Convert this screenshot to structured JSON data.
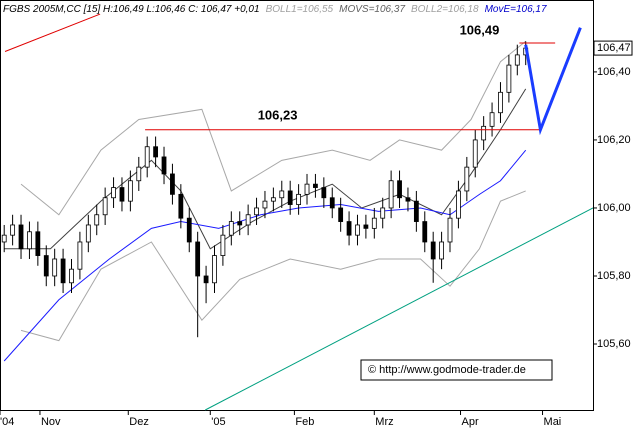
{
  "chart_data": {
    "type": "candlestick",
    "header": [
      {
        "text": "FGBS 2005M,CC [15] H:106,49 L:106,46 C: 106,47 +0,01",
        "color": "#000000"
      },
      {
        "text": "BOLL1=106,55",
        "color": "#a0a0a0"
      },
      {
        "text": "MOVS=106,37",
        "color": "#606060"
      },
      {
        "text": "BOLL2=106,18",
        "color": "#a0a0a0"
      },
      {
        "text": "MovE=106,17",
        "color": "#0000cc"
      }
    ],
    "xlim": [
      0,
      141
    ],
    "ylim": [
      105.406,
      106.582
    ],
    "yticks": [
      {
        "value": 105.6,
        "label": "105,60"
      },
      {
        "value": 105.8,
        "label": "105,80"
      },
      {
        "value": 106.0,
        "label": "106,00"
      },
      {
        "value": 106.2,
        "label": "106,20"
      },
      {
        "value": 106.4,
        "label": "106,40"
      }
    ],
    "xticks": [
      {
        "value": 0,
        "label": "'04"
      },
      {
        "value": 9.5,
        "label": "Nov"
      },
      {
        "value": 30.5,
        "label": "Dez"
      },
      {
        "value": 50,
        "label": "'05"
      },
      {
        "value": 70,
        "label": "Feb"
      },
      {
        "value": 89,
        "label": "Mrz"
      },
      {
        "value": 109.5,
        "label": "Apr"
      },
      {
        "value": 129,
        "label": "Mai"
      }
    ],
    "x": [
      1,
      3,
      5,
      7,
      9,
      11,
      13,
      15,
      17,
      19,
      21,
      23,
      25,
      27,
      29,
      31,
      33,
      35,
      37,
      39,
      41,
      43,
      45,
      47,
      49,
      51,
      53,
      55,
      57,
      59,
      61,
      63,
      65,
      67,
      69,
      71,
      73,
      75,
      77,
      79,
      81,
      83,
      85,
      87,
      89,
      91,
      93,
      95,
      97,
      99,
      101,
      103,
      105,
      107,
      109,
      111,
      113,
      115,
      117,
      119,
      121,
      123,
      125
    ],
    "open": [
      105.9,
      105.92,
      105.95,
      105.88,
      105.93,
      105.86,
      105.8,
      105.85,
      105.78,
      105.82,
      105.9,
      105.95,
      105.98,
      106.03,
      106.06,
      106.02,
      106.08,
      106.12,
      106.18,
      106.15,
      106.1,
      106.04,
      105.97,
      105.9,
      105.8,
      105.78,
      105.86,
      105.92,
      105.96,
      105.95,
      105.98,
      106.0,
      106.02,
      106.03,
      106.05,
      106.01,
      106.04,
      106.07,
      106.06,
      106.03,
      106.0,
      105.96,
      105.92,
      105.95,
      105.94,
      105.97,
      106.0,
      106.08,
      106.03,
      106.02,
      105.96,
      105.9,
      105.85,
      105.9,
      105.97,
      106.05,
      106.12,
      106.2,
      106.24,
      106.28,
      106.34,
      106.42,
      106.45
    ],
    "high": [
      105.95,
      105.98,
      105.98,
      105.96,
      105.96,
      105.89,
      105.88,
      105.88,
      105.85,
      105.93,
      105.98,
      106.01,
      106.06,
      106.09,
      106.09,
      106.11,
      106.15,
      106.21,
      106.21,
      106.18,
      106.13,
      106.07,
      106.0,
      105.93,
      105.83,
      105.89,
      105.95,
      105.99,
      105.99,
      106.01,
      106.03,
      106.05,
      106.06,
      106.08,
      106.08,
      106.07,
      106.1,
      106.1,
      106.09,
      106.06,
      106.03,
      105.99,
      105.98,
      105.98,
      106.0,
      106.03,
      106.11,
      106.11,
      106.06,
      106.05,
      105.99,
      105.93,
      105.93,
      106.0,
      106.08,
      106.15,
      106.23,
      106.27,
      106.31,
      106.37,
      106.45,
      106.48,
      106.49
    ],
    "low": [
      105.87,
      105.89,
      105.85,
      105.85,
      105.83,
      105.77,
      105.77,
      105.75,
      105.75,
      105.79,
      105.87,
      105.92,
      105.95,
      106.0,
      105.99,
      105.99,
      106.05,
      106.09,
      106.12,
      106.07,
      106.01,
      105.94,
      105.87,
      105.62,
      105.72,
      105.75,
      105.83,
      105.89,
      105.92,
      105.92,
      105.95,
      105.97,
      105.99,
      106.0,
      105.98,
      105.98,
      106.01,
      106.03,
      106.0,
      105.97,
      105.93,
      105.89,
      105.89,
      105.91,
      105.91,
      105.94,
      105.97,
      106.0,
      105.99,
      105.93,
      105.87,
      105.78,
      105.82,
      105.87,
      105.94,
      106.02,
      106.09,
      106.17,
      106.21,
      106.25,
      106.31,
      106.39,
      106.42
    ],
    "close": [
      105.92,
      105.95,
      105.88,
      105.93,
      105.86,
      105.8,
      105.85,
      105.78,
      105.82,
      105.9,
      105.95,
      105.98,
      106.03,
      106.06,
      106.02,
      106.08,
      106.12,
      106.18,
      106.15,
      106.1,
      106.04,
      105.97,
      105.9,
      105.8,
      105.78,
      105.86,
      105.92,
      105.96,
      105.95,
      105.98,
      106.0,
      106.02,
      106.03,
      106.05,
      106.01,
      106.04,
      106.07,
      106.06,
      106.03,
      106.0,
      105.96,
      105.92,
      105.95,
      105.94,
      105.97,
      106.0,
      106.08,
      106.03,
      106.02,
      105.96,
      105.9,
      105.85,
      105.9,
      105.97,
      106.05,
      106.12,
      106.2,
      106.24,
      106.28,
      106.34,
      106.42,
      106.45,
      106.47
    ],
    "overlays": [
      {
        "color": "#a8a8a8",
        "x": [
          5,
          14,
          24,
          33,
          48,
          55,
          67,
          79,
          88,
          95,
          105,
          112,
          119,
          125
        ],
        "values": [
          106.07,
          105.98,
          106.17,
          106.26,
          106.29,
          106.05,
          106.14,
          106.17,
          106.14,
          106.2,
          106.17,
          106.26,
          106.43,
          106.49
        ]
      },
      {
        "color": "#a8a8a8",
        "x": [
          5,
          14,
          24,
          36,
          48,
          57,
          69,
          81,
          90,
          100,
          107,
          114,
          119,
          125
        ],
        "values": [
          105.64,
          105.61,
          105.82,
          105.9,
          105.67,
          105.79,
          105.85,
          105.82,
          105.85,
          105.85,
          105.77,
          105.88,
          106.02,
          106.05
        ]
      },
      {
        "color": "#404040",
        "x": [
          1,
          12,
          24,
          36,
          43,
          50,
          60,
          69,
          79,
          86,
          95,
          105,
          112,
          119,
          125
        ],
        "values": [
          105.88,
          105.88,
          106.02,
          106.14,
          106.05,
          105.88,
          105.96,
          106.02,
          106.07,
          106.0,
          106.04,
          105.98,
          106.1,
          106.23,
          106.35
        ]
      },
      {
        "color": "#1a1aff",
        "x": [
          1,
          14,
          26,
          36,
          43,
          52,
          62,
          71,
          81,
          90,
          100,
          107,
          114,
          119,
          125
        ],
        "values": [
          105.55,
          105.73,
          105.85,
          105.94,
          105.96,
          105.94,
          105.98,
          106.0,
          106.01,
          105.99,
          106.0,
          105.98,
          106.04,
          106.08,
          106.17
        ]
      }
    ],
    "lines": [
      {
        "color": "#e00000",
        "width": 1,
        "x": [
          34.5,
          128.5
        ],
        "values": [
          106.23,
          106.23
        ]
      },
      {
        "color": "#e00000",
        "width": 1,
        "x": [
          123.5,
          132
        ],
        "values": [
          106.485,
          106.485
        ]
      },
      {
        "color": "#e00000",
        "width": 1,
        "x": [
          1.2,
          23.8
        ],
        "values": [
          106.46,
          106.57
        ]
      },
      {
        "color": "#00a080",
        "width": 1,
        "x": [
          48.8,
          141
        ],
        "values": [
          105.406,
          106.0
        ]
      },
      {
        "color": "#1a3cff",
        "width": 3,
        "x": [
          125,
          128.5,
          138
        ],
        "values": [
          106.48,
          106.23,
          106.53
        ]
      }
    ],
    "annotations": [
      {
        "text": "106,23",
        "x": 66,
        "y": 106.27
      },
      {
        "text": "106,49",
        "x": 114,
        "y": 106.52
      }
    ],
    "price_tag": {
      "value": 106.47,
      "label": "106,47"
    },
    "source": "© http://www.godmode-trader.de"
  }
}
